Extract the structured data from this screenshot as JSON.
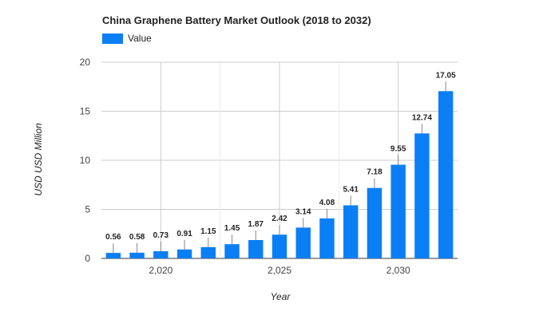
{
  "chart_data": {
    "type": "bar",
    "title": "China Graphene Battery Market Outlook (2018 to 2032)",
    "xlabel": "Year",
    "ylabel": "USD USD Million",
    "legend": {
      "entries": [
        "Value"
      ],
      "placement": "top-left"
    },
    "series": [
      {
        "name": "Value",
        "color": "#0a7ff5",
        "x": [
          2018,
          2019,
          2020,
          2021,
          2022,
          2023,
          2024,
          2025,
          2026,
          2027,
          2028,
          2029,
          2030,
          2031,
          2032
        ],
        "values": [
          0.56,
          0.58,
          0.73,
          0.91,
          1.15,
          1.45,
          1.87,
          2.42,
          3.14,
          4.08,
          5.41,
          7.18,
          9.55,
          12.74,
          17.05
        ]
      }
    ],
    "data_labels": [
      "0.56",
      "0.58",
      "0.73",
      "0.91",
      "1.15",
      "1.45",
      "1.87",
      "2.42",
      "3.14",
      "4.08",
      "5.41",
      "7.18",
      "9.55",
      "12.74",
      "17.05"
    ],
    "ylim": [
      0,
      20
    ],
    "yticks": [
      0,
      5,
      10,
      15,
      20
    ],
    "ytick_labels": [
      "0",
      "5",
      "10",
      "15",
      "20"
    ],
    "xlim": [
      2017.5,
      2032.5
    ],
    "xticks": [
      2020,
      2025,
      2030
    ],
    "xtick_labels": [
      "2,020",
      "2,025",
      "2,030"
    ],
    "grid": true
  }
}
